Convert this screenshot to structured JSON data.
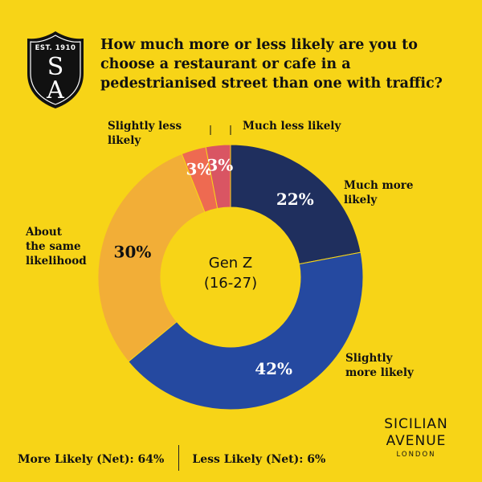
{
  "logo": {
    "est": "EST. 1910",
    "monogram_top": "S",
    "monogram_bottom": "A"
  },
  "title": "How much more or less likely are you to choose a restaurant or cafe in a pedestrianised street than one with traffic?",
  "chart_data": {
    "type": "pie",
    "title": "How much more or less likely are you to choose a restaurant or cafe in a pedestrianised street than one with traffic?",
    "center_label": [
      "Gen Z",
      "(16-27)"
    ],
    "slices": [
      {
        "label": "Much more likely",
        "value": 22,
        "display": "22%",
        "color": "#1F2F5E"
      },
      {
        "label": "Slightly more likely",
        "value": 42,
        "display": "42%",
        "color": "#2549A0"
      },
      {
        "label": "About the same likelihood",
        "value": 30,
        "display": "30%",
        "color": "#F2AE37"
      },
      {
        "label": "Slightly less likely",
        "value": 3,
        "display": "3%",
        "color": "#EE6A51"
      },
      {
        "label": "Much less likely",
        "value": 3,
        "display": "3%",
        "color": "#D95563"
      }
    ],
    "category_labels": {
      "much_more": [
        "Much more",
        "likely"
      ],
      "slightly_more": [
        "Slightly",
        "more likely"
      ],
      "about_same": [
        "About",
        "the same",
        "likelihood"
      ],
      "slightly_less": [
        "Slightly less",
        "likely"
      ],
      "much_less": [
        "Much less likely"
      ]
    }
  },
  "footer": {
    "more_net": "More Likely (Net): 64%",
    "less_net": "Less Likely (Net): 6%"
  },
  "brand": {
    "line1": "SICILIAN",
    "line2": "AVENUE",
    "line3": "LONDON"
  }
}
